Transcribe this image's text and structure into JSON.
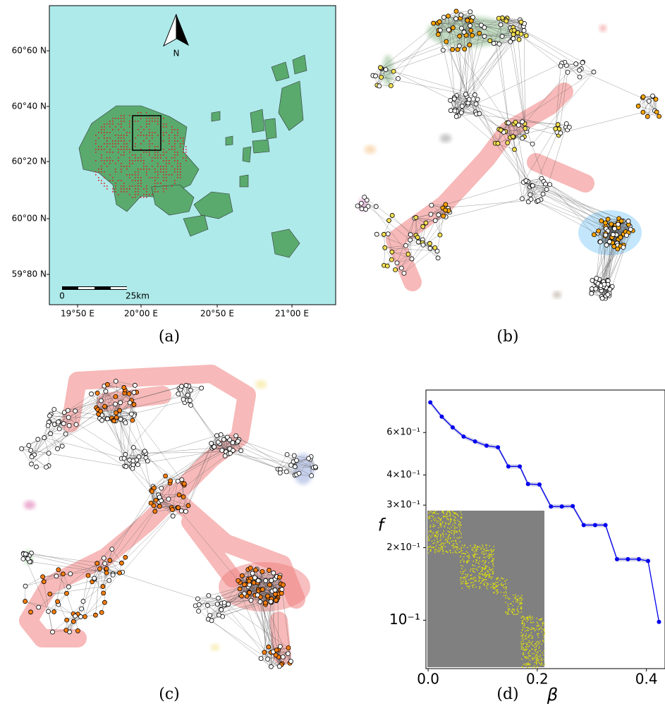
{
  "map": {
    "north": "N",
    "scale_start": "0",
    "scale_end": "25km",
    "lat_labels": [
      "60°60 N",
      "60°40 N",
      "60°20 N",
      "60°00 N",
      "59°80 N"
    ],
    "lon_labels": [
      "19°50 E",
      "20°00 E",
      "20°50 E",
      "21°00 E"
    ]
  },
  "captions": [
    "(a)",
    "(b)",
    "(c)",
    "(d)"
  ],
  "chart_data": {
    "type": "line",
    "xlabel": "β",
    "ylabel": "f",
    "log_y": true,
    "color": "#0000ee",
    "x": [
      0.004,
      0.025,
      0.045,
      0.065,
      0.086,
      0.107,
      0.128,
      0.147,
      0.168,
      0.183,
      0.204,
      0.225,
      0.245,
      0.265,
      0.285,
      0.306,
      0.325,
      0.346,
      0.366,
      0.386,
      0.403,
      0.423
    ],
    "values": [
      0.8,
      0.698,
      0.63,
      0.577,
      0.551,
      0.529,
      0.521,
      0.434,
      0.434,
      0.367,
      0.365,
      0.296,
      0.296,
      0.297,
      0.248,
      0.248,
      0.248,
      0.179,
      0.179,
      0.179,
      0.176,
      0.0984
    ],
    "xlim": [
      -0.004,
      0.434
    ],
    "ylim": [
      0.063,
      0.9
    ],
    "xticks": [
      {
        "value": 0,
        "label": "0.0"
      },
      0.2,
      0.4
    ],
    "yticks": [
      {
        "value": 0.1,
        "label": "10⁻¹"
      },
      {
        "value": 0.2,
        "label": "2×10⁻¹"
      },
      {
        "value": 0.3,
        "label": "3×10⁻¹"
      },
      {
        "value": 0.4,
        "label": "4×10⁻¹"
      },
      {
        "value": 0.6,
        "label": "6×10⁻¹"
      }
    ]
  }
}
